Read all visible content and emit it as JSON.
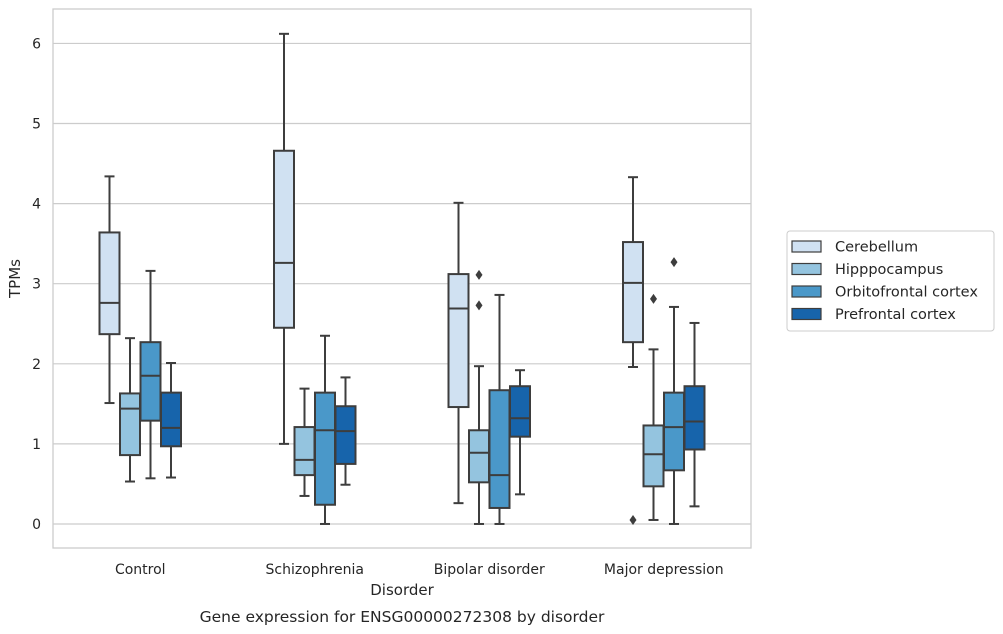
{
  "chart_data": {
    "type": "box",
    "xlabel": "Disorder",
    "ylabel": "TPMs",
    "caption": "Gene expression for ENSG00000272308 by disorder",
    "ylim": [
      -0.3,
      6.43
    ],
    "yticks": [
      0,
      1,
      2,
      3,
      4,
      5,
      6
    ],
    "grid": "horizontal",
    "legend_placement": "right",
    "categories": [
      "Control",
      "Schizophrenia",
      "Bipolar disorder",
      "Major depression"
    ],
    "series": [
      {
        "name": "Cerebellum",
        "color": "#d0e1f2",
        "boxes": [
          {
            "min": 1.51,
            "q1": 2.37,
            "median": 2.76,
            "q3": 3.64,
            "max": 4.34,
            "outliers": []
          },
          {
            "min": 1.0,
            "q1": 2.45,
            "median": 3.26,
            "q3": 4.66,
            "max": 6.12,
            "outliers": []
          },
          {
            "min": 0.26,
            "q1": 1.46,
            "median": 2.69,
            "q3": 3.12,
            "max": 4.01,
            "outliers": []
          },
          {
            "min": 1.96,
            "q1": 2.27,
            "median": 3.01,
            "q3": 3.52,
            "max": 4.33,
            "outliers": [
              0.05
            ]
          }
        ]
      },
      {
        "name": "Hipppocampus",
        "color": "#94c4df",
        "boxes": [
          {
            "min": 0.53,
            "q1": 0.86,
            "median": 1.44,
            "q3": 1.63,
            "max": 2.32,
            "outliers": []
          },
          {
            "min": 0.35,
            "q1": 0.61,
            "median": 0.8,
            "q3": 1.21,
            "max": 1.69,
            "outliers": []
          },
          {
            "min": 0.0,
            "q1": 0.52,
            "median": 0.89,
            "q3": 1.17,
            "max": 1.97,
            "outliers": [
              2.73,
              3.11
            ]
          },
          {
            "min": 0.05,
            "q1": 0.47,
            "median": 0.87,
            "q3": 1.23,
            "max": 2.18,
            "outliers": [
              2.81
            ]
          }
        ]
      },
      {
        "name": "Orbitofrontal cortex",
        "color": "#4a98c9",
        "boxes": [
          {
            "min": 0.57,
            "q1": 1.29,
            "median": 1.85,
            "q3": 2.27,
            "max": 3.16,
            "outliers": []
          },
          {
            "min": 0.0,
            "q1": 0.24,
            "median": 1.17,
            "q3": 1.64,
            "max": 2.35,
            "outliers": []
          },
          {
            "min": 0.0,
            "q1": 0.2,
            "median": 0.61,
            "q3": 1.67,
            "max": 2.86,
            "outliers": []
          },
          {
            "min": 0.0,
            "q1": 0.67,
            "median": 1.21,
            "q3": 1.64,
            "max": 2.71,
            "outliers": [
              3.27
            ]
          }
        ]
      },
      {
        "name": "Prefrontal cortex",
        "color": "#1764ab",
        "boxes": [
          {
            "min": 0.58,
            "q1": 0.97,
            "median": 1.2,
            "q3": 1.64,
            "max": 2.01,
            "outliers": []
          },
          {
            "min": 0.49,
            "q1": 0.75,
            "median": 1.16,
            "q3": 1.47,
            "max": 1.83,
            "outliers": []
          },
          {
            "min": 0.37,
            "q1": 1.09,
            "median": 1.32,
            "q3": 1.72,
            "max": 1.92,
            "outliers": []
          },
          {
            "min": 0.22,
            "q1": 0.93,
            "median": 1.28,
            "q3": 1.72,
            "max": 2.51,
            "outliers": []
          }
        ]
      }
    ]
  }
}
